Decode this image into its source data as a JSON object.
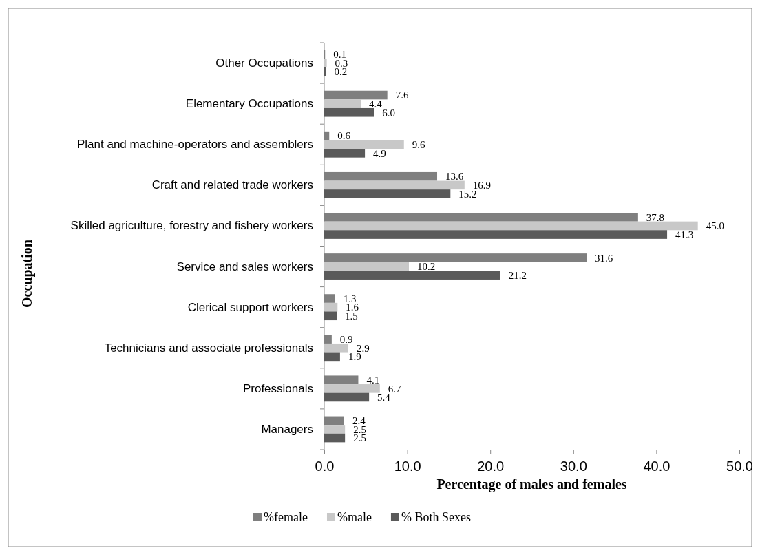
{
  "chart_data": {
    "type": "bar",
    "orientation": "horizontal",
    "xlabel": "Percentage of males and females",
    "ylabel": "Occupation",
    "categories": [
      "Other Occupations",
      "Elementary Occupations",
      "Plant and machine-operators and assemblers",
      "Craft and related trade workers",
      "Skilled agriculture, forestry and fishery workers",
      "Service and sales workers",
      "Clerical support workers",
      "Technicians and associate professionals",
      "Professionals",
      "Managers"
    ],
    "series": [
      {
        "name": "%female",
        "color": "#7f7f7f",
        "values": [
          0.1,
          7.6,
          0.6,
          13.6,
          37.8,
          31.6,
          1.3,
          0.9,
          4.1,
          2.4
        ],
        "value_labels": [
          "0.1",
          "7.6",
          "0.6",
          "13.6",
          "37.8",
          "31.6",
          "1.3",
          "0.9",
          "4.1",
          "2.4"
        ]
      },
      {
        "name": "%male",
        "color": "#c8c8c8",
        "values": [
          0.3,
          4.4,
          9.6,
          16.9,
          45.0,
          10.2,
          1.6,
          2.9,
          6.7,
          2.5
        ],
        "value_labels": [
          "0.3",
          "4.4",
          "9.6",
          "16.9",
          "45.0",
          "10.2",
          "1.6",
          "2.9",
          "6.7",
          "2.5"
        ]
      },
      {
        "name": "% Both Sexes",
        "color": "#5a5a5a",
        "values": [
          0.2,
          6.0,
          4.9,
          15.2,
          41.3,
          21.2,
          1.5,
          1.9,
          5.4,
          2.5
        ],
        "value_labels": [
          "0.2",
          "6.0",
          "4.9",
          "15.2",
          "41.3",
          "21.2",
          "1.5",
          "1.9",
          "5.4",
          "2.5"
        ]
      }
    ],
    "xlim": [
      0,
      50
    ],
    "xticks": [
      {
        "value": 0,
        "label": "0.0"
      },
      {
        "value": 10,
        "label": "10.0"
      },
      {
        "value": 20,
        "label": "20.0"
      },
      {
        "value": 30,
        "label": "30.0"
      },
      {
        "value": 40,
        "label": "40.0"
      },
      {
        "value": 50,
        "label": "50.0"
      }
    ],
    "legend": "bottom",
    "grid": false
  }
}
